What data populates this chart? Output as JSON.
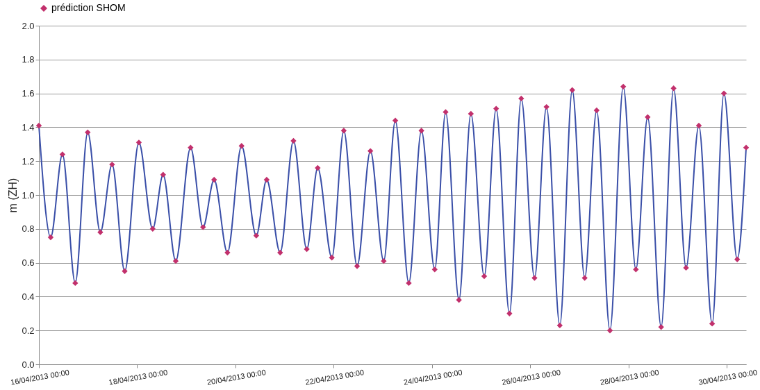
{
  "chart_data": {
    "type": "line",
    "ylabel": "m (ZH)",
    "legend": "top",
    "grid": "y",
    "x": [
      "2013-04-16T00:00",
      "2013-04-16T05:45",
      "2013-04-16T11:30",
      "2013-04-16T17:45",
      "2013-04-16T23:50",
      "2013-04-17T06:00",
      "2013-04-17T11:45",
      "2013-04-17T17:55",
      "2013-04-18T00:50",
      "2013-04-18T07:35",
      "2013-04-18T12:40",
      "2013-04-18T18:50",
      "2013-04-19T02:05",
      "2013-04-19T08:10",
      "2013-04-19T13:35",
      "2013-04-19T20:05",
      "2013-04-20T03:00",
      "2013-04-20T10:10",
      "2013-04-20T15:15",
      "2013-04-20T21:50",
      "2013-04-21T04:20",
      "2013-04-21T10:50",
      "2013-04-21T16:10",
      "2013-04-21T23:05",
      "2013-04-22T04:55",
      "2013-04-22T11:25",
      "2013-04-22T17:55",
      "2013-04-23T00:25",
      "2013-04-23T06:05",
      "2013-04-23T12:40",
      "2013-04-23T18:50",
      "2013-04-24T01:20",
      "2013-04-24T06:40",
      "2013-04-24T13:10",
      "2013-04-24T19:00",
      "2013-04-25T01:30",
      "2013-04-25T07:20",
      "2013-04-25T13:50",
      "2013-04-25T19:35",
      "2013-04-26T02:05",
      "2013-04-26T07:55",
      "2013-04-26T14:25",
      "2013-04-26T20:30",
      "2013-04-27T02:35",
      "2013-04-27T08:25",
      "2013-04-27T14:55",
      "2013-04-27T21:25",
      "2013-04-28T03:35",
      "2013-04-28T09:20",
      "2013-04-28T15:55",
      "2013-04-28T22:00",
      "2013-04-29T04:05",
      "2013-04-29T10:20",
      "2013-04-29T16:50",
      "2013-04-29T22:35",
      "2013-04-30T05:05",
      "2013-04-30T09:25"
    ],
    "series": [
      {
        "color": "#3a4fa8",
        "marker": "none",
        "line_style": "solid",
        "values": [
          1.41,
          0.75,
          1.24,
          0.48,
          1.37,
          0.78,
          1.18,
          0.55,
          1.31,
          0.8,
          1.12,
          0.61,
          1.28,
          0.81,
          1.09,
          0.66,
          1.29,
          0.76,
          1.09,
          0.66,
          1.32,
          0.68,
          1.16,
          0.63,
          1.38,
          0.58,
          1.26,
          0.61,
          1.44,
          0.48,
          1.38,
          0.56,
          1.49,
          0.38,
          1.48,
          0.52,
          1.51,
          0.3,
          1.57,
          0.51,
          1.52,
          0.23,
          1.62,
          0.51,
          1.5,
          0.2,
          1.64,
          0.56,
          1.46,
          0.22,
          1.63,
          0.57,
          1.41,
          0.24,
          1.6,
          0.62,
          1.28
        ]
      },
      {
        "name": "prédiction SHOM",
        "color": "#c2306c",
        "type": "scatter",
        "marker": "diamond",
        "values": [
          1.41,
          0.75,
          1.24,
          0.48,
          1.37,
          0.78,
          1.18,
          0.55,
          1.31,
          0.8,
          1.12,
          0.61,
          1.28,
          0.81,
          1.09,
          0.66,
          1.29,
          0.76,
          1.09,
          0.66,
          1.32,
          0.68,
          1.16,
          0.63,
          1.38,
          0.58,
          1.26,
          0.61,
          1.44,
          0.48,
          1.38,
          0.56,
          1.49,
          0.38,
          1.48,
          0.52,
          1.51,
          0.3,
          1.57,
          0.51,
          1.52,
          0.23,
          1.62,
          0.51,
          1.5,
          0.2,
          1.64,
          0.56,
          1.46,
          0.22,
          1.63,
          0.57,
          1.41,
          0.24,
          1.6,
          0.62,
          1.28
        ]
      }
    ],
    "xlim": [
      "2013-04-16T00:00",
      "2013-04-30T09:25"
    ],
    "xticks": [
      {
        "value": "2013-04-16T00:00",
        "label": "16/04/2013 00:00"
      },
      {
        "value": "2013-04-18T00:00",
        "label": "18/04/2013 00:00"
      },
      {
        "value": "2013-04-20T00:00",
        "label": "20/04/2013 00:00"
      },
      {
        "value": "2013-04-22T00:00",
        "label": "22/04/2013 00:00"
      },
      {
        "value": "2013-04-24T00:00",
        "label": "24/04/2013 00:00"
      },
      {
        "value": "2013-04-26T00:00",
        "label": "26/04/2013 00:00"
      },
      {
        "value": "2013-04-28T00:00",
        "label": "28/04/2013 00:00"
      },
      {
        "value": "2013-04-30T00:00",
        "label": "30/04/2013 00:00"
      }
    ],
    "ylim": [
      0,
      2
    ],
    "yticks": [
      {
        "value": 0,
        "label": "0.0"
      },
      {
        "value": 0.2,
        "label": "0.2"
      },
      {
        "value": 0.4,
        "label": "0.4"
      },
      {
        "value": 0.6,
        "label": "0.6"
      },
      {
        "value": 0.8,
        "label": "0.8"
      },
      {
        "value": 1,
        "label": "1.0"
      },
      {
        "value": 1.2,
        "label": "1.2"
      },
      {
        "value": 1.4,
        "label": "1.4"
      },
      {
        "value": 1.6,
        "label": "1.6"
      },
      {
        "value": 1.8,
        "label": "1.8"
      },
      {
        "value": 2,
        "label": "2.0"
      }
    ]
  }
}
